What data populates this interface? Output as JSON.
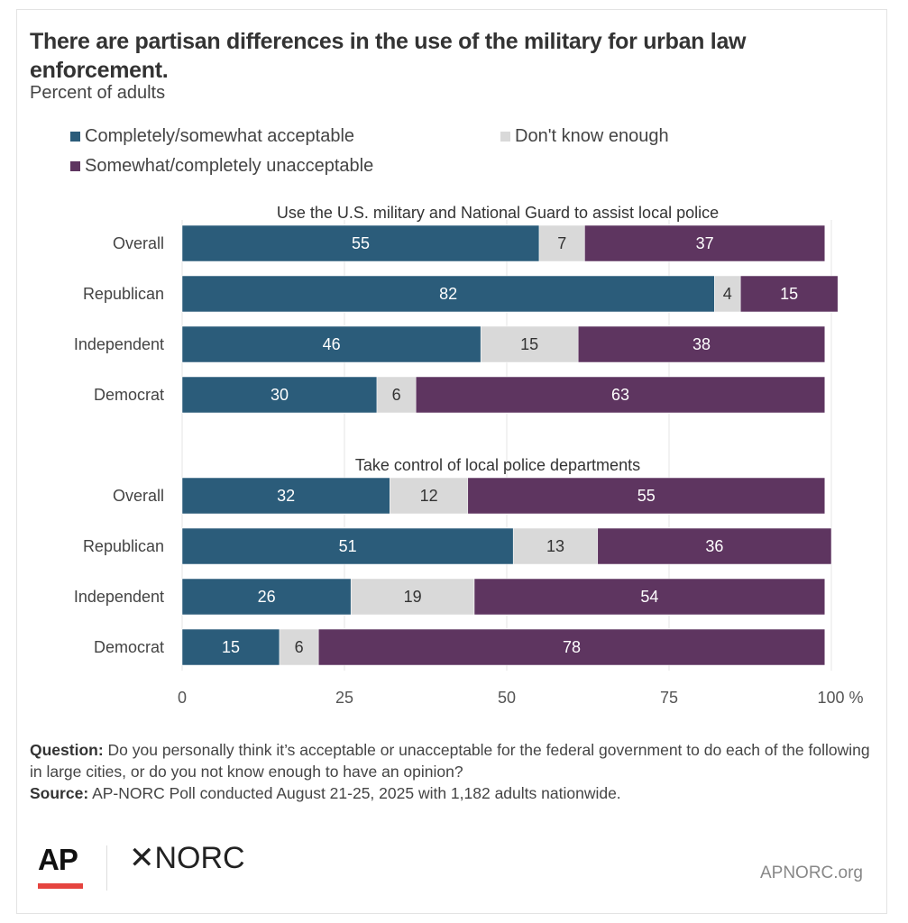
{
  "title": "There are partisan differences in the use of the military for urban law enforcement.",
  "subtitle": "Percent of adults",
  "footer": {
    "question_label": "Question:",
    "question": "Do you personally think it’s acceptable or unacceptable for the federal government to do each of the following in large cities, or do you not know enough to have an opinion?",
    "source_label": "Source:",
    "source": "AP-NORC Poll conducted August 21-25, 2025 with 1,182 adults nationwide."
  },
  "logos": {
    "ap": "AP",
    "norc": "NORC",
    "norc_mark": "✕",
    "site": "APNORC.org"
  },
  "chart_data": {
    "type": "bar",
    "orientation": "horizontal",
    "stacked": true,
    "legend_position": "top",
    "series": [
      {
        "name": "Completely/somewhat acceptable",
        "color": "#2b5c7a"
      },
      {
        "name": "Don't know enough",
        "color": "#d9d9d9"
      },
      {
        "name": "Somewhat/completely unacceptable",
        "color": "#5e3560"
      }
    ],
    "panels": [
      {
        "title": "Use the U.S. military and National Guard to assist local police",
        "categories": [
          "Overall",
          "Republican",
          "Independent",
          "Democrat"
        ],
        "values": [
          [
            55,
            7,
            37
          ],
          [
            82,
            4,
            15
          ],
          [
            46,
            15,
            38
          ],
          [
            30,
            6,
            63
          ]
        ]
      },
      {
        "title": "Take control of local police departments",
        "categories": [
          "Overall",
          "Republican",
          "Independent",
          "Democrat"
        ],
        "values": [
          [
            32,
            12,
            55
          ],
          [
            51,
            13,
            36
          ],
          [
            26,
            19,
            54
          ],
          [
            15,
            6,
            78
          ]
        ]
      }
    ],
    "xlim": [
      0,
      100
    ],
    "xticks": [
      "0",
      "25",
      "50",
      "75",
      "100 %"
    ],
    "grid": true
  }
}
